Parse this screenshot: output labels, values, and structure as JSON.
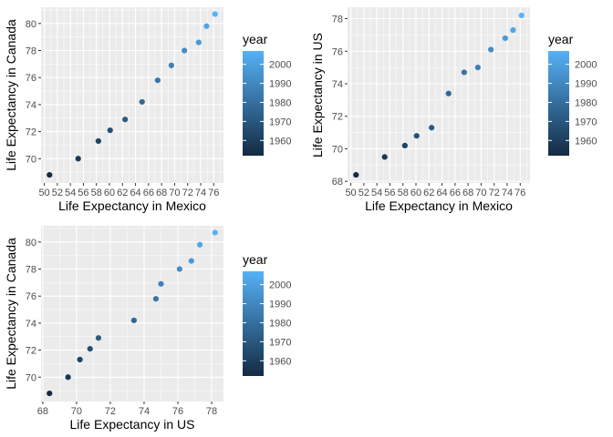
{
  "chart_data": [
    {
      "type": "scatter",
      "xlabel": "Life Expectancy in Mexico",
      "ylabel": "Life Expectancy in Canada",
      "xlim": [
        49.5,
        77.5
      ],
      "ylim": [
        68.2,
        81.2
      ],
      "xticks": [
        50,
        52,
        54,
        56,
        58,
        60,
        62,
        64,
        66,
        68,
        70,
        72,
        74,
        76
      ],
      "yticks": [
        70,
        72,
        74,
        76,
        78,
        80
      ],
      "grid": true,
      "points": [
        {
          "x": 50.8,
          "y": 68.8,
          "year": 1952
        },
        {
          "x": 55.2,
          "y": 70.0,
          "year": 1957
        },
        {
          "x": 58.3,
          "y": 71.3,
          "year": 1962
        },
        {
          "x": 60.1,
          "y": 72.1,
          "year": 1967
        },
        {
          "x": 62.4,
          "y": 72.9,
          "year": 1972
        },
        {
          "x": 65.0,
          "y": 74.2,
          "year": 1977
        },
        {
          "x": 67.4,
          "y": 75.8,
          "year": 1982
        },
        {
          "x": 69.5,
          "y": 76.9,
          "year": 1987
        },
        {
          "x": 71.5,
          "y": 78.0,
          "year": 1992
        },
        {
          "x": 73.7,
          "y": 78.6,
          "year": 1997
        },
        {
          "x": 74.9,
          "y": 79.8,
          "year": 2002
        },
        {
          "x": 76.2,
          "y": 80.7,
          "year": 2007
        }
      ],
      "legend": {
        "title": "year",
        "ticks": [
          1960,
          1970,
          1980,
          1990,
          2000
        ],
        "range": [
          1952,
          2007
        ],
        "placement": "right"
      }
    },
    {
      "type": "scatter",
      "xlabel": "Life Expectancy in Mexico",
      "ylabel": "Life Expectancy in US",
      "xlim": [
        49.5,
        77.5
      ],
      "ylim": [
        67.9,
        78.7
      ],
      "xticks": [
        50,
        52,
        54,
        56,
        58,
        60,
        62,
        64,
        66,
        68,
        70,
        72,
        74,
        76
      ],
      "yticks": [
        68,
        70,
        72,
        74,
        76,
        78
      ],
      "grid": true,
      "points": [
        {
          "x": 50.8,
          "y": 68.4,
          "year": 1952
        },
        {
          "x": 55.2,
          "y": 69.5,
          "year": 1957
        },
        {
          "x": 58.3,
          "y": 70.2,
          "year": 1962
        },
        {
          "x": 60.1,
          "y": 70.8,
          "year": 1967
        },
        {
          "x": 62.4,
          "y": 71.3,
          "year": 1972
        },
        {
          "x": 65.0,
          "y": 73.4,
          "year": 1977
        },
        {
          "x": 67.4,
          "y": 74.7,
          "year": 1982
        },
        {
          "x": 69.5,
          "y": 75.0,
          "year": 1987
        },
        {
          "x": 71.5,
          "y": 76.1,
          "year": 1992
        },
        {
          "x": 73.7,
          "y": 76.8,
          "year": 1997
        },
        {
          "x": 74.9,
          "y": 77.3,
          "year": 2002
        },
        {
          "x": 76.2,
          "y": 78.2,
          "year": 2007
        }
      ],
      "legend": {
        "title": "year",
        "ticks": [
          1960,
          1970,
          1980,
          1990,
          2000
        ],
        "range": [
          1952,
          2007
        ],
        "placement": "right"
      }
    },
    {
      "type": "scatter",
      "xlabel": "Life Expectancy in US",
      "ylabel": "Life Expectancy in Canada",
      "xlim": [
        67.9,
        78.7
      ],
      "ylim": [
        68.2,
        81.2
      ],
      "xticks": [
        68,
        70,
        72,
        74,
        76,
        78
      ],
      "yticks": [
        70,
        72,
        74,
        76,
        78,
        80
      ],
      "grid": true,
      "points": [
        {
          "x": 68.4,
          "y": 68.8,
          "year": 1952
        },
        {
          "x": 69.5,
          "y": 70.0,
          "year": 1957
        },
        {
          "x": 70.2,
          "y": 71.3,
          "year": 1962
        },
        {
          "x": 70.8,
          "y": 72.1,
          "year": 1967
        },
        {
          "x": 71.3,
          "y": 72.9,
          "year": 1972
        },
        {
          "x": 73.4,
          "y": 74.2,
          "year": 1977
        },
        {
          "x": 74.7,
          "y": 75.8,
          "year": 1982
        },
        {
          "x": 75.0,
          "y": 76.9,
          "year": 1987
        },
        {
          "x": 76.1,
          "y": 78.0,
          "year": 1992
        },
        {
          "x": 76.8,
          "y": 78.6,
          "year": 1997
        },
        {
          "x": 77.3,
          "y": 79.8,
          "year": 2002
        },
        {
          "x": 78.2,
          "y": 80.7,
          "year": 2007
        }
      ],
      "legend": {
        "title": "year",
        "ticks": [
          1960,
          1970,
          1980,
          1990,
          2000
        ],
        "range": [
          1952,
          2007
        ],
        "placement": "right"
      }
    }
  ],
  "colors": {
    "panel_bg": "#ebebeb",
    "grid_major": "#ffffff",
    "low": "#132b43",
    "high": "#56b1f7"
  }
}
